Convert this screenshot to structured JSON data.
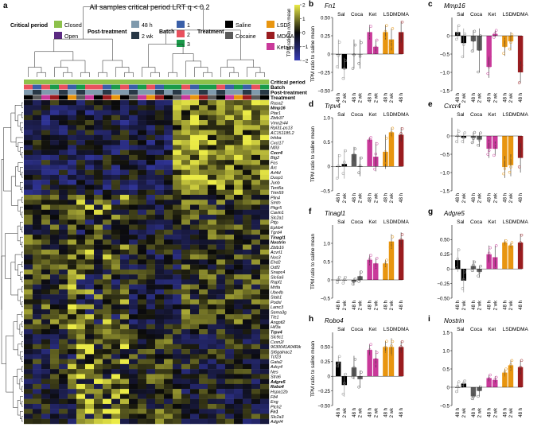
{
  "panel_a": {
    "letter": "a",
    "title": "All samples critical period LRT q < 0.2",
    "colorbar_label": "TPM ratio to row mean",
    "colorbar_ticks": [
      "2",
      "1",
      "0",
      "−1",
      "−2"
    ],
    "colorbar_values": [
      2,
      1,
      0,
      -1,
      -2
    ],
    "legend": {
      "critical_period": {
        "title": "Critical period",
        "items": [
          {
            "label": "Closed",
            "color": "#8dc14b"
          },
          {
            "label": "Open",
            "color": "#5b2a82"
          }
        ]
      },
      "post_treatment": {
        "title": "Post-treatment",
        "items": [
          {
            "label": "48 h",
            "color": "#7f9aad"
          },
          {
            "label": "2 wk",
            "color": "#283846"
          }
        ]
      },
      "batch": {
        "title": "Batch",
        "items": [
          {
            "label": "1",
            "color": "#3a5fa8"
          },
          {
            "label": "2",
            "color": "#e9515e"
          },
          {
            "label": "3",
            "color": "#1a9a4a"
          }
        ]
      },
      "treatment": {
        "title": "Treatment",
        "items": [
          {
            "label": "Saline",
            "color": "#000000"
          },
          {
            "label": "Cocaine",
            "color": "#5a5a5a"
          },
          {
            "label": "LSD",
            "color": "#e8950f"
          },
          {
            "label": "MDMA",
            "color": "#9a1c1f"
          },
          {
            "label": "Ketamine",
            "color": "#c9399a"
          }
        ]
      }
    },
    "annotation_rows": [
      "Critical period",
      "Batch",
      "Post-treatment",
      "Treatment"
    ],
    "genes": [
      "Rasa2",
      "Mmp16",
      "Ptar1",
      "Zbtb37",
      "Vmn2r44",
      "Rpl31-ps13",
      "AC151185.2",
      "Inhba",
      "Cxcl17",
      "Nfil3",
      "Cxcr4",
      "Btg2",
      "Fos",
      "Arc",
      "Arl4d",
      "Dusp1",
      "Junb",
      "Tent5a",
      "Trim59",
      "Plin4",
      "Smtn",
      "Pkgr5",
      "Cavin1",
      "Slc2a1",
      "Pttp",
      "Ephb4",
      "Tgrd4",
      "Tinagl1",
      "Nostrin",
      "Zbtb16",
      "Acvrl1",
      "Nos3",
      "Ehd2",
      "Odf2",
      "Snapc4",
      "Slc6a6",
      "Rapf1",
      "Mrtfa",
      "Ube4b",
      "Stab1",
      "Podxl",
      "Lamc3",
      "Sema3g",
      "Tle1",
      "Angptl2",
      "Hif3a",
      "Trpv4",
      "Slc9c1",
      "Cxxn2l",
      "9630041A04Rik",
      "St6galnac2",
      "Tcf23",
      "Gata2",
      "Adcy4",
      "Nes",
      "Stra6",
      "Adgre5",
      "Robo4",
      "Hspa12b",
      "Flt4",
      "Eng",
      "Ptch2",
      "Fn1",
      "Slc2a3",
      "Adgrl4"
    ],
    "bold_genes": [
      "Mmp16",
      "Cxcr4",
      "Tinagl1",
      "Nostrin",
      "Trpv4",
      "Adgre5",
      "Robo4",
      "Fn1"
    ]
  },
  "chart_data": [
    {
      "type": "heatmap",
      "letter": "a",
      "title": "All samples critical period LRT q < 0.2",
      "ylabel": "TPM ratio to row mean",
      "zlim": [
        -2,
        2
      ]
    },
    {
      "type": "bar",
      "letter": "b",
      "title": "Fn1",
      "ylabel": "TPM ratio to saline mean",
      "ylim": [
        -0.5,
        0.5
      ],
      "yticks": [
        "0.50",
        "0.25",
        "0",
        "−0.25",
        "−0.50"
      ],
      "ytick_values": [
        0.5,
        0.25,
        0,
        -0.25,
        -0.5
      ],
      "groups": [
        "Sal",
        "Coca",
        "Ket",
        "LSD",
        "MDMA"
      ],
      "categories": [
        "48 h",
        "2 wk",
        "48 h",
        "2 wk",
        "48 h",
        "2 wk",
        "48 h",
        "2 wk",
        "48 h"
      ],
      "values": [
        0.0,
        -0.2,
        0.0,
        0.0,
        0.3,
        0.1,
        0.3,
        0.2,
        0.3
      ],
      "errors": [
        0.2,
        0.15,
        0.2,
        0.2,
        0.1,
        0.1,
        0.1,
        0.15,
        0.15
      ],
      "colors": [
        "#000000",
        "#000000",
        "#5a5a5a",
        "#5a5a5a",
        "#c9399a",
        "#c9399a",
        "#e8950f",
        "#e8950f",
        "#9a1c1f"
      ]
    },
    {
      "type": "bar",
      "letter": "c",
      "title": "Mmp16",
      "ylabel": "",
      "ylim": [
        -1.5,
        0.5
      ],
      "yticks": [
        "0",
        "−0.5",
        "−1.0",
        "−1.5"
      ],
      "ytick_values": [
        0,
        -0.5,
        -1,
        -1.5
      ],
      "groups": [
        "Sal",
        "Coca",
        "Ket",
        "LSD",
        "MDMA"
      ],
      "categories": [
        "48 h",
        "2 wk",
        "48 h",
        "2 wk",
        "48 h",
        "2 wk",
        "48 h",
        "2 wk",
        "48 h"
      ],
      "values": [
        0.1,
        -0.2,
        -0.15,
        -0.4,
        -0.85,
        0.05,
        -0.3,
        -0.15,
        -1.0
      ],
      "errors": [
        0.2,
        0.4,
        0.3,
        0.6,
        0.3,
        0.1,
        0.25,
        0.25,
        0.3
      ],
      "colors": [
        "#000000",
        "#000000",
        "#5a5a5a",
        "#5a5a5a",
        "#c9399a",
        "#c9399a",
        "#e8950f",
        "#e8950f",
        "#9a1c1f"
      ]
    },
    {
      "type": "bar",
      "letter": "d",
      "title": "Trpv4",
      "ylabel": "TPM ratio to saline mean",
      "ylim": [
        -0.5,
        1.0
      ],
      "yticks": [
        "1.0",
        "0.5",
        "0",
        "−0.5"
      ],
      "ytick_values": [
        1,
        0.5,
        0,
        -0.5
      ],
      "groups": [
        "Sal",
        "Coca",
        "Ket",
        "LSD",
        "MDMA"
      ],
      "categories": [
        "48 h",
        "2 wk",
        "48 h",
        "2 wk",
        "48 h",
        "2 wk",
        "48 h",
        "2 wk",
        "48 h"
      ],
      "values": [
        0.0,
        0.05,
        0.25,
        0.0,
        0.55,
        0.2,
        0.3,
        0.7,
        0.65
      ],
      "errors": [
        0.25,
        0.3,
        0.15,
        0.2,
        0.05,
        0.3,
        0.35,
        0.1,
        0.15
      ],
      "colors": [
        "#000000",
        "#000000",
        "#5a5a5a",
        "#5a5a5a",
        "#c9399a",
        "#c9399a",
        "#e8950f",
        "#e8950f",
        "#9a1c1f"
      ]
    },
    {
      "type": "bar",
      "letter": "e",
      "title": "Cxcr4",
      "ylabel": "",
      "ylim": [
        -1.5,
        0.5
      ],
      "yticks": [
        "0",
        "−0.5",
        "−1.0",
        "−1.5"
      ],
      "ytick_values": [
        0,
        -0.5,
        -1,
        -1.5
      ],
      "groups": [
        "Sal",
        "Coca",
        "Ket",
        "LSD",
        "MDMA"
      ],
      "categories": [
        "48 h",
        "2 wk",
        "48 h",
        "2 wk",
        "48 h",
        "2 wk",
        "48 h",
        "2 wk",
        "48 h"
      ],
      "values": [
        0.0,
        -0.05,
        -0.05,
        -0.1,
        -0.35,
        -0.35,
        -0.85,
        -0.8,
        -0.6
      ],
      "errors": [
        0.2,
        0.15,
        0.15,
        0.2,
        0.25,
        0.2,
        0.3,
        0.3,
        0.4
      ],
      "colors": [
        "#000000",
        "#000000",
        "#5a5a5a",
        "#5a5a5a",
        "#c9399a",
        "#c9399a",
        "#e8950f",
        "#e8950f",
        "#9a1c1f"
      ]
    },
    {
      "type": "bar",
      "letter": "f",
      "title": "Tinagl1",
      "ylabel": "TPM ratio to saline mean",
      "ylim": [
        -0.5,
        1.5
      ],
      "yticks": [
        "1.0",
        "0.5",
        "0",
        "−0.5"
      ],
      "ytick_values": [
        1,
        0.5,
        0,
        -0.5
      ],
      "groups": [
        "Sal",
        "Coca",
        "Ket",
        "LSD",
        "MDMA"
      ],
      "categories": [
        "48 h",
        "2 wk",
        "48 h",
        "2 wk",
        "48 h",
        "2 wk",
        "48 h",
        "2 wk",
        "48 h"
      ],
      "values": [
        0.0,
        0.0,
        -0.05,
        0.1,
        0.55,
        0.45,
        0.45,
        1.05,
        1.1
      ],
      "errors": [
        0.1,
        0.1,
        0.1,
        0.15,
        0.15,
        0.15,
        0.1,
        0.2,
        0.2
      ],
      "colors": [
        "#000000",
        "#000000",
        "#5a5a5a",
        "#5a5a5a",
        "#c9399a",
        "#c9399a",
        "#e8950f",
        "#e8950f",
        "#9a1c1f"
      ]
    },
    {
      "type": "bar",
      "letter": "g",
      "title": "Adgre5",
      "ylabel": "",
      "ylim": [
        -0.5,
        0.75
      ],
      "yticks": [
        "0.50",
        "0.25",
        "0",
        "−0.25",
        "−0.50"
      ],
      "ytick_values": [
        0.5,
        0.25,
        0,
        -0.25,
        -0.5
      ],
      "groups": [
        "Sal",
        "Coca",
        "Ket",
        "LSD",
        "MDMA"
      ],
      "categories": [
        "48 h",
        "2 wk",
        "48 h",
        "2 wk",
        "48 h",
        "2 wk",
        "48 h",
        "2 wk",
        "48 h"
      ],
      "values": [
        0.15,
        -0.2,
        0.05,
        -0.05,
        0.25,
        0.2,
        0.45,
        0.4,
        0.45
      ],
      "errors": [
        0.2,
        0.2,
        0.1,
        0.1,
        0.15,
        0.2,
        0.05,
        0.05,
        0.15
      ],
      "colors": [
        "#000000",
        "#000000",
        "#5a5a5a",
        "#5a5a5a",
        "#c9399a",
        "#c9399a",
        "#e8950f",
        "#e8950f",
        "#9a1c1f"
      ]
    },
    {
      "type": "bar",
      "letter": "h",
      "title": "Robo4",
      "ylabel": "TPM ratio to saline mean",
      "ylim": [
        -0.5,
        0.75
      ],
      "yticks": [
        "0.50",
        "0.25",
        "0",
        "−0.25",
        "−0.50"
      ],
      "ytick_values": [
        0.5,
        0.25,
        0,
        -0.25,
        -0.5
      ],
      "groups": [
        "Sal",
        "Coca",
        "Ket",
        "LSD",
        "MDMA"
      ],
      "categories": [
        "48 h",
        "2 wk",
        "48 h",
        "2 wk",
        "48 h",
        "2 wk",
        "48 h",
        "2 wk",
        "48 h"
      ],
      "values": [
        0.25,
        -0.15,
        0.15,
        -0.05,
        0.45,
        0.3,
        0.5,
        0.5,
        0.5
      ],
      "errors": [
        0.1,
        0.2,
        0.2,
        0.15,
        0.1,
        0.15,
        0.1,
        0.15,
        0.1
      ],
      "colors": [
        "#000000",
        "#000000",
        "#5a5a5a",
        "#5a5a5a",
        "#c9399a",
        "#c9399a",
        "#e8950f",
        "#e8950f",
        "#9a1c1f"
      ]
    },
    {
      "type": "bar",
      "letter": "i",
      "title": "Nostrin",
      "ylabel": "",
      "ylim": [
        -0.5,
        1.5
      ],
      "yticks": [
        "1.5",
        "1.0",
        "0.5",
        "0",
        "−0.5"
      ],
      "ytick_values": [
        1.5,
        1,
        0.5,
        0,
        -0.5
      ],
      "groups": [
        "Sal",
        "Coca",
        "Ket",
        "LSD",
        "MDMA"
      ],
      "categories": [
        "48 h",
        "2 wk",
        "48 h",
        "2 wk",
        "48 h",
        "2 wk",
        "48 h",
        "2 wk",
        "48 h"
      ],
      "values": [
        0.0,
        0.1,
        -0.25,
        -0.1,
        0.25,
        0.2,
        0.4,
        0.6,
        0.55
      ],
      "errors": [
        0.15,
        0.1,
        0.1,
        0.15,
        0.1,
        0.1,
        0.1,
        0.15,
        0.2
      ],
      "colors": [
        "#000000",
        "#000000",
        "#5a5a5a",
        "#5a5a5a",
        "#c9399a",
        "#c9399a",
        "#e8950f",
        "#e8950f",
        "#9a1c1f"
      ]
    }
  ]
}
